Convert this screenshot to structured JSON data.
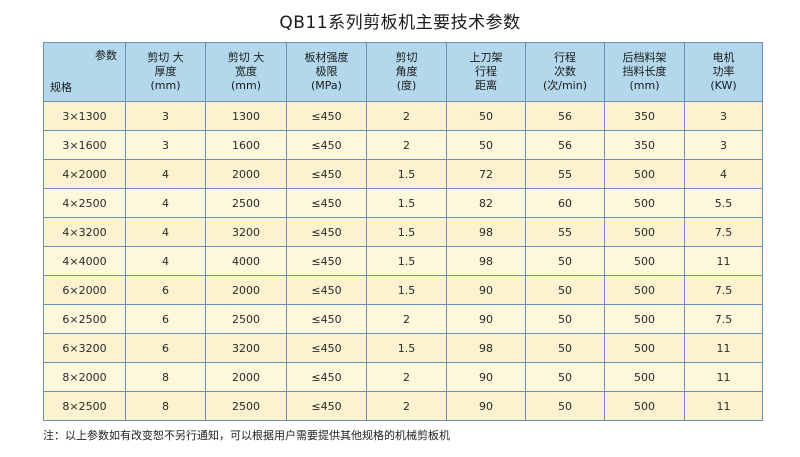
{
  "title": "QB11系列剪板机主要技术参数",
  "header": {
    "corner_top": "参数",
    "corner_bottom": "规格",
    "columns": [
      [
        "剪切 大",
        "厚度",
        "(mm)"
      ],
      [
        "剪切 大",
        "宽度",
        "(mm)"
      ],
      [
        "板材强度",
        "极限",
        "(MPa)"
      ],
      [
        "剪切",
        "角度",
        "(度)"
      ],
      [
        "上刀架",
        "行程",
        "距离"
      ],
      [
        "行程",
        "次数",
        "(次/min)"
      ],
      [
        "后档料架",
        "挡料长度",
        "(mm)"
      ],
      [
        "电机",
        "功率",
        "(KW)"
      ]
    ]
  },
  "rows": [
    [
      "3×1300",
      "3",
      "1300",
      "≤450",
      "2",
      "50",
      "56",
      "350",
      "3"
    ],
    [
      "3×1600",
      "3",
      "1600",
      "≤450",
      "2",
      "50",
      "56",
      "350",
      "3"
    ],
    [
      "4×2000",
      "4",
      "2000",
      "≤450",
      "1.5",
      "72",
      "55",
      "500",
      "4"
    ],
    [
      "4×2500",
      "4",
      "2500",
      "≤450",
      "1.5",
      "82",
      "60",
      "500",
      "5.5"
    ],
    [
      "4×3200",
      "4",
      "3200",
      "≤450",
      "1.5",
      "98",
      "55",
      "500",
      "7.5"
    ],
    [
      "4×4000",
      "4",
      "4000",
      "≤450",
      "1.5",
      "98",
      "50",
      "500",
      "11"
    ],
    [
      "6×2000",
      "6",
      "2000",
      "≤450",
      "1.5",
      "90",
      "50",
      "500",
      "7.5"
    ],
    [
      "6×2500",
      "6",
      "2500",
      "≤450",
      "2",
      "90",
      "50",
      "500",
      "7.5"
    ],
    [
      "6×3200",
      "6",
      "3200",
      "≤450",
      "1.5",
      "98",
      "50",
      "500",
      "11"
    ],
    [
      "8×2000",
      "8",
      "2000",
      "≤450",
      "2",
      "90",
      "50",
      "500",
      "11"
    ],
    [
      "8×2500",
      "8",
      "2500",
      "≤450",
      "2",
      "90",
      "50",
      "500",
      "11"
    ]
  ],
  "note": "注：以上参数如有改变恕不另行通知，可以根据用户需要提供其他规格的机械剪板机"
}
